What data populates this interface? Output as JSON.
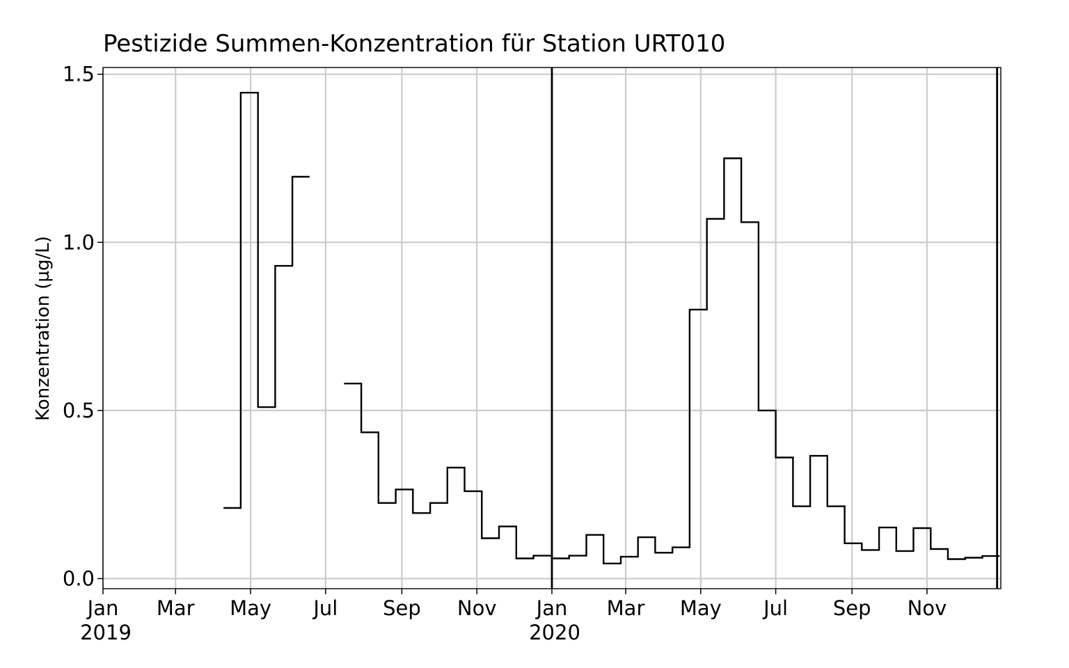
{
  "chart_data": {
    "type": "line",
    "subtype": "step",
    "title": "Pestizide Summen-Konzentration für Station URT010",
    "xlabel": "",
    "ylabel": "Konzentration (µg/L)",
    "ylim": [
      -0.03,
      1.52
    ],
    "xlim": [
      "2019-01-01",
      "2020-12-31"
    ],
    "grid": true,
    "legend": "none",
    "line_color": "#000000",
    "x_ticks": [
      {
        "date": "2019-01-01",
        "label": "Jan",
        "year": "2019"
      },
      {
        "date": "2019-03-01",
        "label": "Mar",
        "year": ""
      },
      {
        "date": "2019-05-01",
        "label": "May",
        "year": ""
      },
      {
        "date": "2019-07-01",
        "label": "Jul",
        "year": ""
      },
      {
        "date": "2019-09-01",
        "label": "Sep",
        "year": ""
      },
      {
        "date": "2019-11-01",
        "label": "Nov",
        "year": ""
      },
      {
        "date": "2020-01-01",
        "label": "Jan",
        "year": "2020"
      },
      {
        "date": "2020-03-01",
        "label": "Mar",
        "year": ""
      },
      {
        "date": "2020-05-01",
        "label": "May",
        "year": ""
      },
      {
        "date": "2020-07-01",
        "label": "Jul",
        "year": ""
      },
      {
        "date": "2020-09-01",
        "label": "Sep",
        "year": ""
      },
      {
        "date": "2020-11-01",
        "label": "Nov",
        "year": ""
      }
    ],
    "y_ticks": [
      {
        "value": 0.0,
        "label": "0.0"
      },
      {
        "value": 0.5,
        "label": "0.5"
      },
      {
        "value": 1.0,
        "label": "1.0"
      },
      {
        "value": 1.5,
        "label": "1.5"
      }
    ],
    "vertical_lines": [
      "2020-01-01",
      "2020-12-28"
    ],
    "series": [
      {
        "points": [
          {
            "start": "2019-04-09",
            "end": "2019-04-23",
            "value": 0.21
          },
          {
            "start": "2019-04-23",
            "end": "2019-05-07",
            "value": 1.445
          },
          {
            "start": "2019-05-07",
            "end": "2019-05-21",
            "value": 0.51
          },
          {
            "start": "2019-05-21",
            "end": "2019-06-04",
            "value": 0.93
          },
          {
            "start": "2019-06-04",
            "end": "2019-06-18",
            "value": 1.195
          }
        ]
      },
      {
        "points": [
          {
            "start": "2019-07-16",
            "end": "2019-07-30",
            "value": 0.58
          },
          {
            "start": "2019-07-30",
            "end": "2019-08-13",
            "value": 0.435
          },
          {
            "start": "2019-08-13",
            "end": "2019-08-27",
            "value": 0.225
          },
          {
            "start": "2019-08-27",
            "end": "2019-09-10",
            "value": 0.265
          },
          {
            "start": "2019-09-10",
            "end": "2019-09-24",
            "value": 0.195
          },
          {
            "start": "2019-09-24",
            "end": "2019-10-08",
            "value": 0.225
          },
          {
            "start": "2019-10-08",
            "end": "2019-10-22",
            "value": 0.33
          },
          {
            "start": "2019-10-22",
            "end": "2019-11-05",
            "value": 0.26
          },
          {
            "start": "2019-11-05",
            "end": "2019-11-19",
            "value": 0.12
          },
          {
            "start": "2019-11-19",
            "end": "2019-12-03",
            "value": 0.155
          },
          {
            "start": "2019-12-03",
            "end": "2019-12-17",
            "value": 0.06
          },
          {
            "start": "2019-12-17",
            "end": "2020-01-01",
            "value": 0.068
          },
          {
            "start": "2020-01-01",
            "end": "2020-01-15",
            "value": 0.06
          },
          {
            "start": "2020-01-15",
            "end": "2020-01-29",
            "value": 0.068
          },
          {
            "start": "2020-01-29",
            "end": "2020-02-12",
            "value": 0.13
          },
          {
            "start": "2020-02-12",
            "end": "2020-02-26",
            "value": 0.045
          },
          {
            "start": "2020-02-26",
            "end": "2020-03-11",
            "value": 0.065
          },
          {
            "start": "2020-03-11",
            "end": "2020-03-25",
            "value": 0.123
          },
          {
            "start": "2020-03-25",
            "end": "2020-04-08",
            "value": 0.077
          },
          {
            "start": "2020-04-08",
            "end": "2020-04-22",
            "value": 0.093
          },
          {
            "start": "2020-04-22",
            "end": "2020-05-06",
            "value": 0.8
          },
          {
            "start": "2020-05-06",
            "end": "2020-05-20",
            "value": 1.07
          },
          {
            "start": "2020-05-20",
            "end": "2020-06-03",
            "value": 1.25
          },
          {
            "start": "2020-06-03",
            "end": "2020-06-17",
            "value": 1.06
          },
          {
            "start": "2020-06-17",
            "end": "2020-07-01",
            "value": 0.5
          },
          {
            "start": "2020-07-01",
            "end": "2020-07-15",
            "value": 0.36
          },
          {
            "start": "2020-07-15",
            "end": "2020-07-29",
            "value": 0.215
          },
          {
            "start": "2020-07-29",
            "end": "2020-08-12",
            "value": 0.365
          },
          {
            "start": "2020-08-12",
            "end": "2020-08-26",
            "value": 0.215
          },
          {
            "start": "2020-08-26",
            "end": "2020-09-09",
            "value": 0.105
          },
          {
            "start": "2020-09-09",
            "end": "2020-09-23",
            "value": 0.085
          },
          {
            "start": "2020-09-23",
            "end": "2020-10-07",
            "value": 0.152
          },
          {
            "start": "2020-10-07",
            "end": "2020-10-21",
            "value": 0.082
          },
          {
            "start": "2020-10-21",
            "end": "2020-11-04",
            "value": 0.15
          },
          {
            "start": "2020-11-04",
            "end": "2020-11-18",
            "value": 0.088
          },
          {
            "start": "2020-11-18",
            "end": "2020-12-02",
            "value": 0.058
          },
          {
            "start": "2020-12-02",
            "end": "2020-12-16",
            "value": 0.062
          },
          {
            "start": "2020-12-16",
            "end": "2020-12-30",
            "value": 0.067
          }
        ]
      }
    ]
  }
}
